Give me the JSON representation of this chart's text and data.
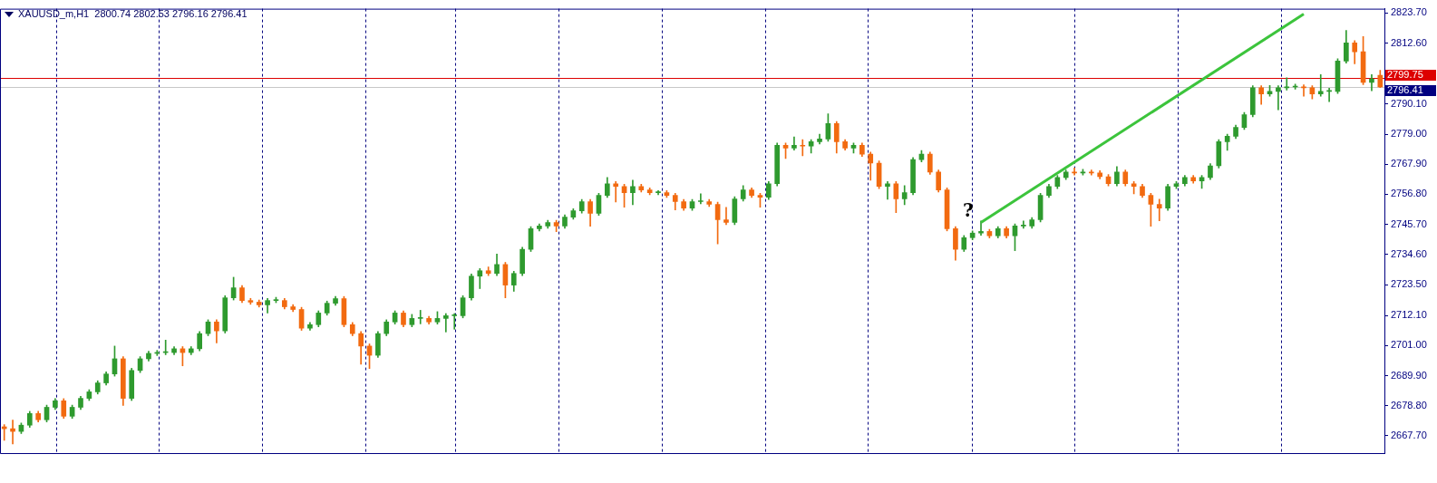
{
  "chart_data": {
    "type": "candlestick",
    "title": "XAUUSD_m,H1  2800.74 2802.53 2796.16 2796.41",
    "colors": [
      "#f26a10",
      "#f26a10",
      "#2e9a2e",
      "#2e9a2e",
      "#f26a10",
      "#2e9a2e",
      "#2e9a2e",
      "#f26a10",
      "#2e9a2e",
      "#2e9a2e",
      "#2e9a2e",
      "#2e9a2e",
      "#2e9a2e",
      "#2e9a2e",
      "#f26a10",
      "#2e9a2e",
      "#2e9a2e",
      "#2e9a2e",
      "#2e9a2e",
      "#2e9a2e",
      "#2e9a2e",
      "#f26a10",
      "#2e9a2e",
      "#2e9a2e",
      "#2e9a2e",
      "#f26a10",
      "#2e9a2e",
      "#2e9a2e",
      "#f26a10",
      "#f26a10",
      "#f26a10",
      "#2e9a2e",
      "#2e9a2e",
      "#f26a10",
      "#f26a10",
      "#f26a10",
      "#2e9a2e",
      "#2e9a2e",
      "#2e9a2e",
      "#2e9a2e",
      "#f26a10",
      "#f26a10",
      "#f26a10",
      "#f26a10",
      "#2e9a2e",
      "#2e9a2e",
      "#2e9a2e",
      "#f26a10",
      "#2e9a2e",
      "#2e9a2e",
      "#f26a10",
      "#2e9a2e",
      "#2e9a2e",
      "#2e9a2e",
      "#2e9a2e",
      "#2e9a2e",
      "#2e9a2e",
      "#f26a10",
      "#2e9a2e",
      "#f26a10",
      "#2e9a2e",
      "#2e9a2e",
      "#2e9a2e",
      "#2e9a2e",
      "#2e9a2e",
      "#f26a10",
      "#2e9a2e",
      "#2e9a2e",
      "#2e9a2e",
      "#f26a10",
      "#2e9a2e",
      "#2e9a2e",
      "#f26a10",
      "#f26a10",
      "#2e9a2e",
      "#f26a10",
      "#f26a10",
      "#2e9a2e",
      "#f26a10",
      "#f26a10",
      "#f26a10",
      "#2e9a2e",
      "#2e9a2e",
      "#f26a10",
      "#f26a10",
      "#f26a10",
      "#2e9a2e",
      "#2e9a2e",
      "#f26a10",
      "#f26a10",
      "#2e9a2e",
      "#2e9a2e",
      "#f26a10",
      "#2e9a2e",
      "#f26a10",
      "#2e9a2e",
      "#2e9a2e",
      "#2e9a2e",
      "#f26a10",
      "#f26a10",
      "#2e9a2e",
      "#f26a10",
      "#f26a10",
      "#f26a10",
      "#2e9a2e",
      "#f26a10",
      "#2e9a2e",
      "#2e9a2e",
      "#2e9a2e",
      "#f26a10",
      "#f26a10",
      "#f26a10",
      "#f26a10",
      "#2e9a2e",
      "#2e9a2e",
      "#2e9a2e",
      "#f26a10",
      "#2e9a2e",
      "#f26a10",
      "#2e9a2e",
      "#2e9a2e",
      "#2e9a2e",
      "#2e9a2e",
      "#2e9a2e",
      "#2e9a2e",
      "#2e9a2e",
      "#f26a10",
      "#2e9a2e",
      "#f26a10",
      "#f26a10",
      "#f26a10",
      "#2e9a2e",
      "#f26a10",
      "#f26a10",
      "#f26a10",
      "#f26a10",
      "#f26a10",
      "#2e9a2e",
      "#2e9a2e",
      "#2e9a2e",
      "#f26a10",
      "#2e9a2e",
      "#2e9a2e",
      "#2e9a2e",
      "#2e9a2e",
      "#2e9a2e",
      "#2e9a2e",
      "#2e9a2e",
      "#f26a10",
      "#2e9a2e",
      "#2e9a2e",
      "#2e9a2e",
      "#2e9a2e",
      "#f26a10",
      "#f26a10",
      "#2e9a2e",
      "#2e9a2e",
      "#2e9a2e",
      "#2e9a2e",
      "#f26a10",
      "#f26a10",
      "#2e9a2e",
      "#f26a10"
    ],
    "ylim": [
      2661.3,
      2825.3
    ],
    "yticks": [
      {
        "value": 2823.7,
        "label": "2823.70"
      },
      {
        "value": 2812.6,
        "label": "2812.60"
      },
      {
        "value": 2790.1,
        "label": "2790.10"
      },
      {
        "value": 2779.0,
        "label": "2779.00"
      },
      {
        "value": 2767.9,
        "label": "2767.90"
      },
      {
        "value": 2756.8,
        "label": "2756.80"
      },
      {
        "value": 2745.7,
        "label": "2745.70"
      },
      {
        "value": 2734.6,
        "label": "2734.60"
      },
      {
        "value": 2723.5,
        "label": "2723.50"
      },
      {
        "value": 2712.1,
        "label": "2712.10"
      },
      {
        "value": 2701.0,
        "label": "2701.00"
      },
      {
        "value": 2689.9,
        "label": "2689.90"
      },
      {
        "value": 2678.8,
        "label": "2678.80"
      },
      {
        "value": 2667.7,
        "label": "2667.70"
      }
    ],
    "tick_labels": "y",
    "ref_lines": [
      {
        "axis": "y",
        "value": 2799.75,
        "label": "2799.75",
        "color": "#dd0000"
      },
      {
        "axis": "y",
        "value": 2796.41,
        "label": "2796.41",
        "color": "#c8c8c8"
      }
    ],
    "series": [
      {
        "type": "line",
        "color": "#3cc43c",
        "values": [
          null,
          null,
          null,
          null,
          null,
          null,
          null,
          null,
          null,
          null,
          null,
          null,
          null,
          null,
          null,
          null,
          null,
          null,
          null,
          null,
          null,
          null,
          null,
          null,
          null,
          null,
          null,
          null,
          null,
          null,
          null,
          null,
          null,
          null,
          null,
          null,
          null,
          null,
          null,
          null,
          null,
          null,
          null,
          null,
          null,
          null,
          null,
          null,
          null,
          null,
          null,
          null,
          null,
          null,
          null,
          null,
          null,
          null,
          null,
          null,
          null,
          null,
          null,
          null,
          null,
          null,
          null,
          null,
          null,
          null,
          null,
          null,
          null,
          null,
          null,
          null,
          null,
          null,
          null,
          null,
          null,
          null,
          null,
          null,
          null,
          null,
          null,
          null,
          null,
          null,
          null,
          null,
          null,
          null,
          null,
          null,
          null,
          null,
          null,
          null,
          null,
          null,
          null,
          null,
          null,
          null,
          null,
          null,
          null,
          null,
          null,
          null,
          null,
          null,
          null,
          2746.4,
          null,
          null,
          null,
          null,
          null,
          null,
          null,
          null,
          null,
          null,
          null,
          null,
          null,
          null,
          null,
          null,
          null,
          null,
          null,
          null,
          null,
          null,
          null,
          null,
          null,
          null,
          null,
          null,
          null,
          null,
          null,
          null,
          null,
          null,
          null,
          null,
          null,
          2823.3,
          null,
          null,
          null,
          null,
          null,
          null,
          null,
          null,
          null
        ]
      }
    ],
    "annotations": [
      "?"
    ],
    "categories": [
      null,
      null,
      null,
      null,
      null,
      null,
      null,
      null,
      null,
      null,
      null,
      null,
      null,
      null,
      null,
      null,
      null,
      null,
      null,
      null,
      null,
      null,
      null,
      null,
      null,
      null,
      null,
      null,
      null,
      null,
      null,
      null,
      null,
      null,
      null,
      null,
      null,
      null,
      null,
      null,
      null,
      null,
      null,
      null,
      null,
      null,
      null,
      null,
      null,
      null,
      null,
      null,
      null,
      null,
      null,
      null,
      null,
      null,
      null,
      null,
      null,
      null,
      null,
      null,
      null,
      null,
      null,
      null,
      null,
      null,
      null,
      null,
      null,
      null,
      null,
      null,
      null,
      null,
      null,
      null,
      null,
      null,
      null,
      null,
      null,
      null,
      null,
      null,
      null,
      null,
      null,
      null,
      null,
      null,
      null,
      null,
      null,
      null,
      null,
      null,
      null,
      null,
      null,
      null,
      null,
      null,
      null,
      null,
      null,
      null,
      null,
      null,
      null,
      null,
      null,
      null,
      null,
      null,
      null,
      null,
      null,
      null,
      null,
      null,
      null,
      null,
      null,
      null,
      null,
      null,
      null,
      null,
      null,
      null,
      null,
      null,
      null,
      null,
      null,
      null,
      null,
      null,
      null,
      null,
      null,
      null,
      null,
      null,
      null,
      null,
      null,
      null,
      null,
      null,
      null,
      null,
      null,
      null,
      null,
      null,
      null,
      null,
      null
    ],
    "ohlc": [
      [
        2671.0,
        2671.8,
        2666.0,
        2670.3
      ],
      [
        2670.3,
        2673.5,
        2664.7,
        2669.3
      ],
      [
        2669.3,
        2672.4,
        2668.5,
        2671.6
      ],
      [
        2671.6,
        2676.7,
        2670.8,
        2675.9
      ],
      [
        2675.9,
        2676.7,
        2672.8,
        2673.6
      ],
      [
        2673.6,
        2679.0,
        2672.8,
        2678.2
      ],
      [
        2678.2,
        2681.4,
        2677.4,
        2680.6
      ],
      [
        2680.6,
        2681.4,
        2674.1,
        2674.9
      ],
      [
        2674.9,
        2679.0,
        2674.1,
        2678.2
      ],
      [
        2678.2,
        2682.3,
        2677.4,
        2681.5
      ],
      [
        2681.5,
        2684.7,
        2680.7,
        2683.9
      ],
      [
        2683.9,
        2688.0,
        2683.1,
        2687.2
      ],
      [
        2687.2,
        2691.3,
        2686.4,
        2690.5
      ],
      [
        2690.5,
        2700.8,
        2689.7,
        2696.1
      ],
      [
        2696.1,
        2696.9,
        2678.9,
        2681.5
      ],
      [
        2681.5,
        2692.6,
        2680.7,
        2691.8
      ],
      [
        2691.8,
        2696.9,
        2691.0,
        2696.1
      ],
      [
        2696.1,
        2698.9,
        2695.3,
        2698.1
      ],
      [
        2698.1,
        2699.2,
        2697.3,
        2698.4
      ],
      [
        2698.4,
        2703.0,
        2697.6,
        2698.4
      ],
      [
        2698.4,
        2700.6,
        2697.6,
        2699.8
      ],
      [
        2699.8,
        2700.6,
        2693.5,
        2698.4
      ],
      [
        2698.4,
        2700.6,
        2697.6,
        2699.8
      ],
      [
        2699.8,
        2706.2,
        2699.0,
        2705.4
      ],
      [
        2705.4,
        2710.5,
        2704.6,
        2709.7
      ],
      [
        2709.7,
        2710.5,
        2702.0,
        2706.4
      ],
      [
        2706.4,
        2719.4,
        2705.6,
        2718.6
      ],
      [
        2718.6,
        2726.2,
        2717.8,
        2722.3
      ],
      [
        2722.3,
        2723.1,
        2716.8,
        2717.6
      ],
      [
        2717.6,
        2718.4,
        2716.2,
        2717.0
      ],
      [
        2717.0,
        2717.8,
        2715.2,
        2716.0
      ],
      [
        2716.0,
        2718.4,
        2713.0,
        2717.6
      ],
      [
        2717.6,
        2718.8,
        2716.8,
        2717.6
      ],
      [
        2717.6,
        2718.4,
        2714.5,
        2715.3
      ],
      [
        2715.3,
        2716.1,
        2713.5,
        2714.3
      ],
      [
        2714.3,
        2715.1,
        2706.6,
        2707.4
      ],
      [
        2707.4,
        2709.5,
        2706.6,
        2708.7
      ],
      [
        2708.7,
        2713.8,
        2707.9,
        2713.0
      ],
      [
        2713.0,
        2717.4,
        2712.2,
        2716.6
      ],
      [
        2716.6,
        2719.1,
        2715.8,
        2718.3
      ],
      [
        2718.3,
        2719.1,
        2707.9,
        2708.7
      ],
      [
        2708.7,
        2709.5,
        2704.6,
        2705.4
      ],
      [
        2705.4,
        2706.2,
        2694.1,
        2700.8
      ],
      [
        2700.8,
        2701.6,
        2692.5,
        2697.4
      ],
      [
        2697.4,
        2706.2,
        2696.6,
        2705.4
      ],
      [
        2705.4,
        2710.5,
        2704.6,
        2709.7
      ],
      [
        2709.7,
        2713.8,
        2708.9,
        2713.0
      ],
      [
        2713.0,
        2713.8,
        2707.9,
        2708.7
      ],
      [
        2708.7,
        2712.5,
        2707.9,
        2711.0
      ],
      [
        2711.0,
        2714.0,
        2709.0,
        2711.0
      ],
      [
        2711.0,
        2711.8,
        2708.9,
        2709.7
      ],
      [
        2709.7,
        2713.5,
        2708.9,
        2711.0
      ],
      [
        2711.0,
        2712.8,
        2706.0,
        2712.0
      ],
      [
        2712.0,
        2712.8,
        2707.0,
        2712.0
      ],
      [
        2712.0,
        2719.4,
        2711.2,
        2718.6
      ],
      [
        2718.6,
        2727.4,
        2717.8,
        2726.6
      ],
      [
        2726.6,
        2729.4,
        2722.0,
        2728.6
      ],
      [
        2728.6,
        2730.0,
        2726.8,
        2727.6
      ],
      [
        2727.6,
        2734.8,
        2726.8,
        2730.9
      ],
      [
        2730.9,
        2731.7,
        2718.6,
        2723.3
      ],
      [
        2723.3,
        2728.4,
        2721.0,
        2727.6
      ],
      [
        2727.6,
        2737.3,
        2726.8,
        2736.5
      ],
      [
        2736.5,
        2744.9,
        2735.7,
        2744.1
      ],
      [
        2744.1,
        2745.9,
        2743.3,
        2745.1
      ],
      [
        2745.1,
        2747.2,
        2744.3,
        2746.4
      ],
      [
        2746.4,
        2747.2,
        2743.0,
        2745.1
      ],
      [
        2745.1,
        2749.2,
        2744.3,
        2748.4
      ],
      [
        2748.4,
        2751.5,
        2747.6,
        2750.7
      ],
      [
        2750.7,
        2754.9,
        2749.9,
        2754.1
      ],
      [
        2754.1,
        2754.9,
        2745.0,
        2749.8
      ],
      [
        2749.8,
        2757.2,
        2749.0,
        2756.4
      ],
      [
        2756.4,
        2763.0,
        2755.6,
        2760.7
      ],
      [
        2760.7,
        2761.5,
        2754.0,
        2759.7
      ],
      [
        2759.7,
        2760.5,
        2752.0,
        2757.4
      ],
      [
        2757.4,
        2762.0,
        2753.0,
        2759.7
      ],
      [
        2759.7,
        2760.5,
        2757.6,
        2758.4
      ],
      [
        2758.4,
        2759.2,
        2756.6,
        2757.4
      ],
      [
        2757.4,
        2758.2,
        2756.6,
        2757.4
      ],
      [
        2757.4,
        2758.2,
        2755.6,
        2756.4
      ],
      [
        2756.4,
        2757.2,
        2751.0,
        2754.1
      ],
      [
        2754.1,
        2754.9,
        2750.9,
        2751.7
      ],
      [
        2751.7,
        2754.9,
        2750.9,
        2754.1
      ],
      [
        2754.1,
        2757.0,
        2753.3,
        2754.1
      ],
      [
        2754.1,
        2754.9,
        2752.3,
        2753.1
      ],
      [
        2753.1,
        2753.9,
        2738.5,
        2747.4
      ],
      [
        2747.4,
        2752.0,
        2745.6,
        2746.4
      ],
      [
        2746.4,
        2755.9,
        2745.6,
        2755.1
      ],
      [
        2755.1,
        2760.0,
        2754.3,
        2758.4
      ],
      [
        2758.4,
        2759.2,
        2755.6,
        2756.4
      ],
      [
        2756.4,
        2757.2,
        2752.0,
        2755.7
      ],
      [
        2755.7,
        2761.5,
        2754.9,
        2760.7
      ],
      [
        2760.7,
        2775.7,
        2759.9,
        2774.9
      ],
      [
        2774.9,
        2775.7,
        2770.0,
        2773.9
      ],
      [
        2773.9,
        2778.0,
        2773.1,
        2774.9
      ],
      [
        2774.9,
        2777.0,
        2771.0,
        2774.6
      ],
      [
        2774.6,
        2777.0,
        2772.0,
        2776.2
      ],
      [
        2776.2,
        2779.0,
        2775.4,
        2777.2
      ],
      [
        2777.2,
        2786.5,
        2776.4,
        2782.9
      ],
      [
        2782.9,
        2783.7,
        2772.0,
        2776.2
      ],
      [
        2776.2,
        2777.0,
        2773.1,
        2773.9
      ],
      [
        2773.9,
        2775.7,
        2772.0,
        2774.9
      ],
      [
        2774.9,
        2775.7,
        2770.8,
        2771.6
      ],
      [
        2771.6,
        2772.4,
        2762.0,
        2768.3
      ],
      [
        2768.3,
        2769.1,
        2758.9,
        2759.7
      ],
      [
        2759.7,
        2761.5,
        2755.0,
        2760.7
      ],
      [
        2760.7,
        2761.5,
        2750.0,
        2755.1
      ],
      [
        2755.1,
        2760.0,
        2753.0,
        2757.4
      ],
      [
        2757.4,
        2770.4,
        2756.6,
        2769.6
      ],
      [
        2769.6,
        2773.0,
        2768.8,
        2771.6
      ],
      [
        2771.6,
        2772.4,
        2764.2,
        2765.0
      ],
      [
        2765.0,
        2765.8,
        2757.6,
        2758.4
      ],
      [
        2758.4,
        2759.2,
        2743.3,
        2744.1
      ],
      [
        2744.1,
        2744.9,
        2732.5,
        2736.5
      ],
      [
        2736.5,
        2741.6,
        2735.7,
        2740.8
      ],
      [
        2740.8,
        2743.3,
        2740.0,
        2742.5
      ],
      [
        2742.5,
        2747.0,
        2741.7,
        2743.1
      ],
      [
        2743.1,
        2743.9,
        2740.7,
        2741.5
      ],
      [
        2741.5,
        2744.9,
        2740.7,
        2744.1
      ],
      [
        2744.1,
        2744.9,
        2740.7,
        2741.5
      ],
      [
        2741.5,
        2745.9,
        2736.0,
        2745.1
      ],
      [
        2745.1,
        2747.0,
        2744.3,
        2745.1
      ],
      [
        2745.1,
        2748.2,
        2744.3,
        2747.4
      ],
      [
        2747.4,
        2757.2,
        2746.6,
        2756.4
      ],
      [
        2756.4,
        2760.5,
        2755.6,
        2759.7
      ],
      [
        2759.7,
        2763.8,
        2758.9,
        2763.0
      ],
      [
        2763.0,
        2765.8,
        2762.2,
        2765.0
      ],
      [
        2765.0,
        2766.5,
        2763.9,
        2764.7
      ],
      [
        2764.7,
        2766.0,
        2763.9,
        2765.0
      ],
      [
        2765.0,
        2765.8,
        2763.9,
        2764.7
      ],
      [
        2764.7,
        2765.5,
        2762.5,
        2763.3
      ],
      [
        2763.3,
        2764.1,
        2759.9,
        2760.7
      ],
      [
        2760.7,
        2767.0,
        2759.9,
        2765.0
      ],
      [
        2765.0,
        2765.8,
        2759.9,
        2760.7
      ],
      [
        2760.7,
        2761.5,
        2757.0,
        2759.7
      ],
      [
        2759.7,
        2760.5,
        2755.6,
        2756.4
      ],
      [
        2756.4,
        2757.2,
        2745.0,
        2753.1
      ],
      [
        2753.1,
        2755.0,
        2747.0,
        2751.7
      ],
      [
        2751.7,
        2760.5,
        2750.9,
        2759.7
      ],
      [
        2759.7,
        2761.5,
        2758.9,
        2760.7
      ],
      [
        2760.7,
        2763.8,
        2759.9,
        2763.0
      ],
      [
        2763.0,
        2763.8,
        2760.9,
        2761.7
      ],
      [
        2761.7,
        2763.8,
        2759.0,
        2763.0
      ],
      [
        2763.0,
        2768.1,
        2762.2,
        2767.3
      ],
      [
        2767.3,
        2777.0,
        2766.5,
        2776.2
      ],
      [
        2776.2,
        2779.0,
        2773.0,
        2778.2
      ],
      [
        2778.2,
        2782.3,
        2777.4,
        2781.5
      ],
      [
        2781.5,
        2787.0,
        2780.7,
        2786.2
      ],
      [
        2786.2,
        2796.9,
        2785.4,
        2796.1
      ],
      [
        2796.1,
        2796.9,
        2790.0,
        2793.8
      ],
      [
        2793.8,
        2797.0,
        2793.0,
        2794.8
      ],
      [
        2794.8,
        2796.9,
        2788.0,
        2796.1
      ],
      [
        2796.1,
        2799.8,
        2795.3,
        2796.4
      ],
      [
        2796.4,
        2797.5,
        2795.6,
        2796.4
      ],
      [
        2796.4,
        2797.2,
        2793.0,
        2796.1
      ],
      [
        2796.1,
        2796.9,
        2792.0,
        2793.8
      ],
      [
        2793.8,
        2801.0,
        2793.0,
        2794.8
      ],
      [
        2794.8,
        2796.0,
        2791.0,
        2794.8
      ],
      [
        2794.8,
        2806.8,
        2794.0,
        2806.0
      ],
      [
        2806.0,
        2817.3,
        2805.2,
        2812.7
      ],
      [
        2812.7,
        2813.5,
        2805.0,
        2809.4
      ],
      [
        2809.4,
        2815.0,
        2797.3,
        2798.1
      ],
      [
        2798.1,
        2801.0,
        2795.0,
        2799.4
      ],
      [
        2800.74,
        2802.53,
        2796.16,
        2796.41
      ]
    ]
  }
}
